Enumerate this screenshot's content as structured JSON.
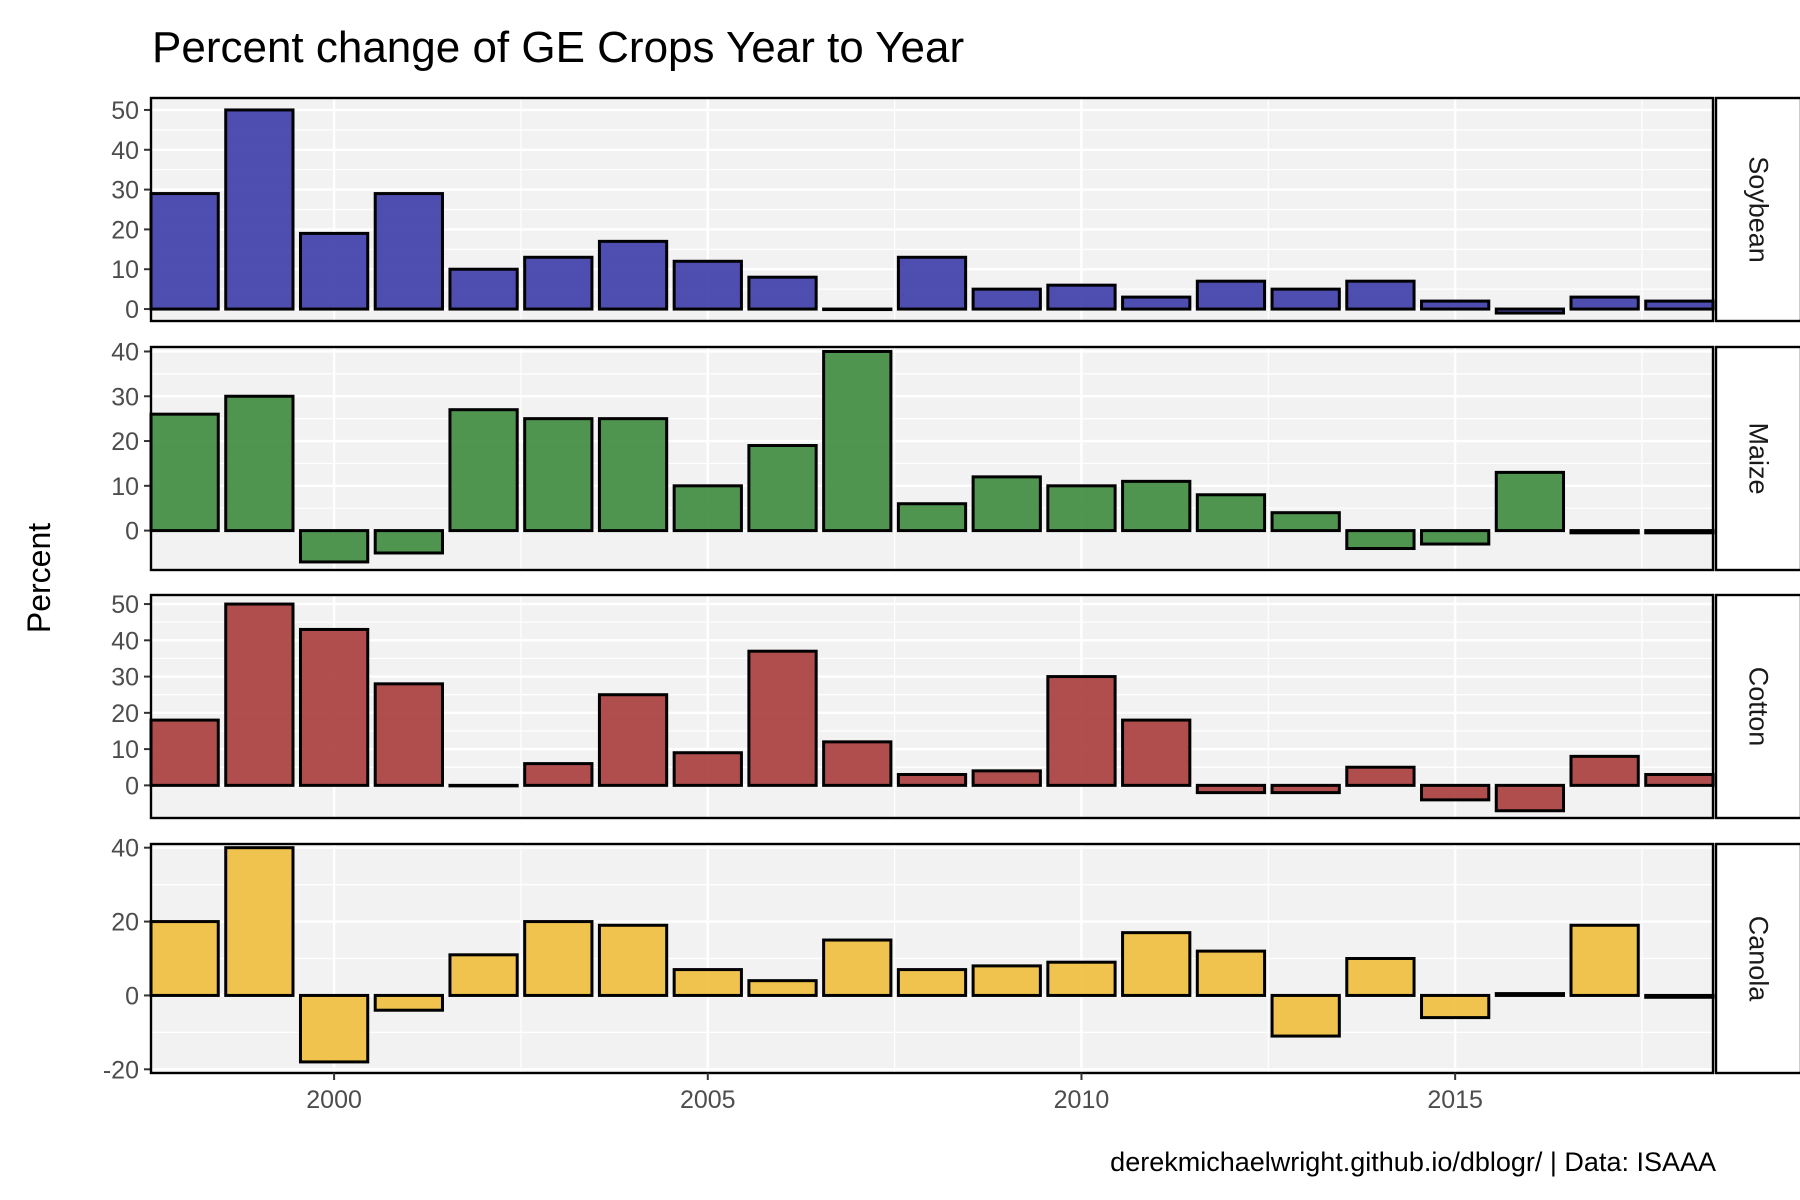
{
  "chart_data": {
    "type": "bar",
    "title": "Percent change of GE Crops Year to Year",
    "ylabel": "Percent",
    "caption": "derekmichaelwright.github.io/dblogr/ | Data: ISAAA",
    "x": [
      1998,
      1999,
      2000,
      2001,
      2002,
      2003,
      2004,
      2005,
      2006,
      2007,
      2008,
      2009,
      2010,
      2011,
      2012,
      2013,
      2014,
      2015,
      2016,
      2017,
      2018
    ],
    "x_ticks": [
      2000,
      2005,
      2010,
      2015
    ],
    "xlim": [
      1997.55,
      2018.45
    ],
    "grid": true,
    "panels": [
      {
        "name": "Soybean",
        "color": "#3c3ca8",
        "ylim": [
          -3,
          53
        ],
        "y_ticks": [
          0,
          10,
          20,
          30,
          40,
          50
        ],
        "values": [
          29,
          50,
          19,
          29,
          10,
          13,
          17,
          12,
          8,
          0,
          13,
          5,
          6,
          3,
          7,
          5,
          7,
          2,
          -1,
          3,
          2
        ]
      },
      {
        "name": "Maize",
        "color": "#3d8a3d",
        "ylim": [
          -8.8,
          41
        ],
        "y_ticks": [
          0,
          10,
          20,
          30,
          40
        ],
        "values": [
          26,
          30,
          -7,
          -5,
          27,
          25,
          25,
          10,
          19,
          40,
          6,
          12,
          10,
          11,
          8,
          4,
          -4,
          -3,
          13,
          -0.5,
          -0.5
        ]
      },
      {
        "name": "Cotton",
        "color": "#a83c3c",
        "ylim": [
          -9,
          52.5
        ],
        "y_ticks": [
          0,
          10,
          20,
          30,
          40,
          50
        ],
        "values": [
          18,
          50,
          43,
          28,
          0,
          6,
          25,
          9,
          37,
          12,
          3,
          4,
          30,
          18,
          -2,
          -2,
          5,
          -4,
          -7,
          8,
          3
        ]
      },
      {
        "name": "Canola",
        "color": "#f0bc3c",
        "ylim": [
          -21,
          41
        ],
        "y_ticks": [
          -20,
          0,
          20,
          40
        ],
        "values": [
          20,
          40,
          -18,
          -4,
          11,
          20,
          19,
          7,
          4,
          15,
          7,
          8,
          9,
          17,
          12,
          -11,
          10,
          -6,
          0.5,
          19,
          -0.5
        ]
      }
    ]
  }
}
